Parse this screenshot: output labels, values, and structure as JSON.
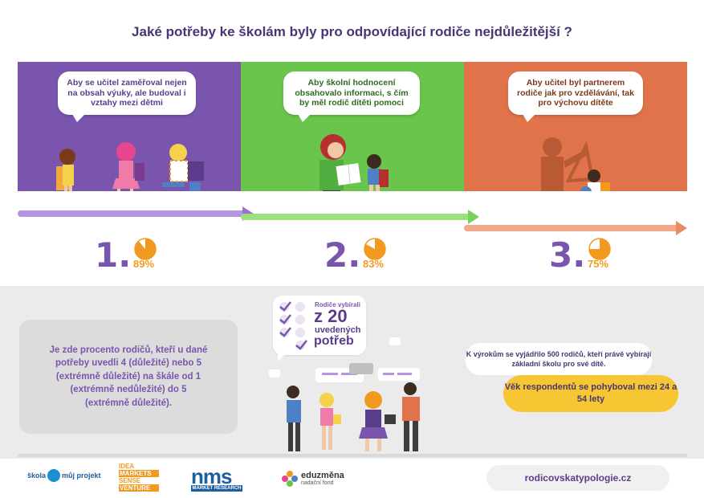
{
  "title": "Jaké potřeby ke školám byly pro odpovídající rodiče nejdůležitější ?",
  "panels": [
    {
      "bubble": "Aby se učitel zaměřoval nejen na obsah výuky, ale budoval i vztahy mezi dětmi",
      "rank": "1.",
      "percent_label": "89%",
      "percent": 89
    },
    {
      "bubble": "Aby školní hodnocení obsahovalo informaci, s čím by měl rodič dítěti pomoci",
      "rank": "2.",
      "percent_label": "83%",
      "percent": 83
    },
    {
      "bubble": "Aby učitel byl partnerem rodiče jak pro vzdělávání, tak pro výchovu dítěte",
      "rank": "3.",
      "percent_label": "75%",
      "percent": 75
    }
  ],
  "info": "Je zde procento rodičů, kteří u dané potřeby uvedli 4 (důležité) nebo 5 (extrémně důležité) na škále od 1 (extrémně nedůležité) do 5 (extrémně důležité).",
  "checklist": {
    "lead": "Rodiče vybírali",
    "big": "z 20",
    "mid": "uvedených",
    "bottom": "potřeb"
  },
  "respondents": "K výrokům se vyjádřilo 500 rodičů, kteří právě vybírají základní školu pro své dítě.",
  "age": "Věk respondentů se pohyboval mezi 24 a 54 lety",
  "logos": {
    "skola": "škola",
    "skola2": "můj projekt",
    "idea": [
      "IDEA",
      "MARKETS",
      "SENSE",
      "VENTURE"
    ],
    "nms": "nms",
    "nms_sub": "MARKET RESEARCH",
    "edu": "eduzměna",
    "edu_sub": "nadační fond"
  },
  "url": "rodicovskatypologie.cz",
  "colors": {
    "purple": "#7a55ad",
    "green": "#69c54c",
    "orange": "#e0734a",
    "accent": "#f29a1f",
    "yellow": "#f6c733"
  }
}
